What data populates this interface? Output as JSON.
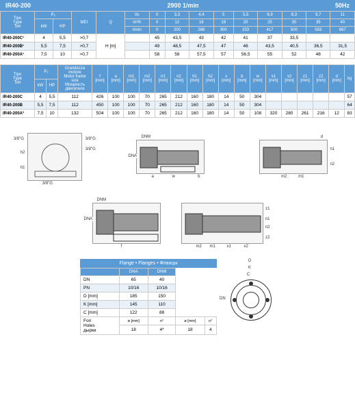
{
  "header": {
    "model": "IR40-200",
    "rpm": "2900 1/min",
    "hz": "50Hz"
  },
  "t1": {
    "cols_p": [
      "Tipo\nType\nТип",
      "P₂",
      "",
      "MEI",
      "Q"
    ],
    "cols_sub": [
      "kW",
      "HP"
    ],
    "q_labels": [
      "l/s",
      "m³/h",
      "l/min"
    ],
    "q_ls": [
      "0",
      "3,3",
      "4,4",
      "5",
      "5,5",
      "6,9",
      "8,3",
      "9,7",
      "11"
    ],
    "q_m3h": [
      "0",
      "12",
      "16",
      "18",
      "20",
      "25",
      "30",
      "35",
      "40"
    ],
    "q_lmin": [
      "0",
      "200",
      "266",
      "300",
      "333",
      "417",
      "500",
      "583",
      "667"
    ],
    "h_label": "H [m]",
    "rows": [
      {
        "m": "IR40-200C¹",
        "kw": "4",
        "hp": "5,5",
        "mei": ">0,7",
        "h": [
          "45",
          "43,5",
          "43",
          "42",
          "41",
          "37",
          "33,5",
          "",
          ""
        ]
      },
      {
        "m": "IR40-200B¹",
        "kw": "5,5",
        "hp": "7,5",
        "mei": ">0,7",
        "h": [
          "49",
          "48,5",
          "47,5",
          "47",
          "46",
          "43,5",
          "40,5",
          "36,5",
          "31,5"
        ]
      },
      {
        "m": "IR40-200A¹",
        "kw": "7,5",
        "hp": "10",
        "mei": ">0,7",
        "h": [
          "58",
          "58",
          "57,5",
          "57",
          "56,5",
          "55",
          "52",
          "48",
          "42"
        ]
      }
    ]
  },
  "t2": {
    "cols_hdr": [
      "Tipo\nType\nТип",
      "P₂",
      "",
      "Grandezza\nmotore\nMotor frame\nsize\nМощность\nдвигателя"
    ],
    "dim_cols": [
      "f\n[mm]",
      "a\n[mm]",
      "m1\n[mm]",
      "m2\n[mm]",
      "n1\n[mm]",
      "n2\n[mm]",
      "h1\n[mm]",
      "h2\n[mm]",
      "s\n[mm]",
      "b\n[mm]",
      "w\n[mm]",
      "x1\n[mm]",
      "x2\n[mm]",
      "z1\n[mm]",
      "z2\n[mm]",
      "d\n[mm]",
      "kg"
    ],
    "rows": [
      {
        "m": "IR40-200C",
        "kw": "4",
        "hp": "5,5",
        "fr": "112",
        "d": [
          "426",
          "100",
          "100",
          "70",
          "265",
          "212",
          "160",
          "180",
          "14",
          "50",
          "304",
          "",
          "",
          "",
          "",
          "",
          "57"
        ]
      },
      {
        "m": "IR40-200B",
        "kw": "5,5",
        "hp": "7,5",
        "fr": "112",
        "d": [
          "450",
          "100",
          "100",
          "70",
          "265",
          "212",
          "160",
          "180",
          "14",
          "50",
          "304",
          "",
          "",
          "",
          "",
          "",
          "64"
        ]
      },
      {
        "m": "IR40-200A³",
        "kw": "7,5",
        "hp": "10",
        "fr": "132",
        "d": [
          "504",
          "100",
          "100",
          "70",
          "265",
          "212",
          "160",
          "180",
          "14",
          "50",
          "108",
          "320",
          "280",
          "261",
          "216",
          "12",
          "83"
        ]
      }
    ]
  },
  "flange": {
    "title": "Flange • Flanges • Фланцы",
    "cols": [
      "",
      "DNA",
      "DNM"
    ],
    "rows": [
      [
        "DN",
        "65",
        "40"
      ],
      [
        "PN",
        "10/16",
        "10/16"
      ],
      [
        "D [mm]",
        "185",
        "150"
      ],
      [
        "K [mm]",
        "145",
        "110"
      ],
      [
        "C [mm]",
        "122",
        "88"
      ]
    ],
    "holes_label": "Fori\nHoles\nдырки",
    "holes_sub": [
      "ø [mm]",
      "n°",
      "ø [mm]",
      "n°"
    ],
    "holes_vals": [
      "18",
      "4*",
      "18",
      "4"
    ]
  },
  "diag_lbls": {
    "g": "3/8\"G",
    "dnm": "DNM",
    "dna": "DNA",
    "h1": "h1",
    "h2": "h2",
    "n1": "n1",
    "n2": "n2",
    "m1": "m1",
    "m2": "m2",
    "x1": "x1",
    "x2": "x2",
    "z1": "z1",
    "z2": "z2",
    "d": "d",
    "f": "f",
    "a": "a",
    "b": "b",
    "w": "w",
    "D": "D",
    "K": "K",
    "C": "C",
    "DN": "DN"
  }
}
